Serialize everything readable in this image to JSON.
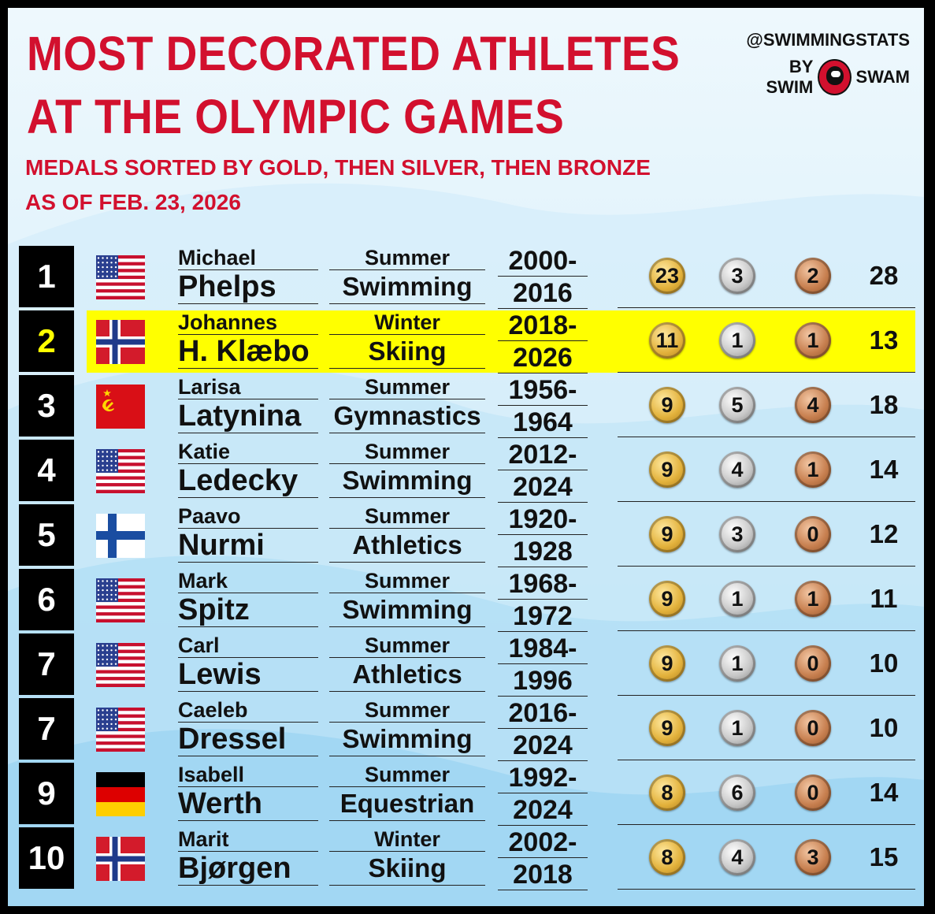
{
  "header": {
    "title_line1": "MOST DECORATED ATHLETES",
    "title_line2": "AT THE OLYMPIC GAMES",
    "subtitle_line1": "MEDALS SORTED BY GOLD, THEN SILVER, THEN BRONZE",
    "subtitle_line2": "AS OF FEB. 23, 2026"
  },
  "brand": {
    "handle": "@SWIMMINGSTATS",
    "by": "BY SWIM",
    "name": "SWAM",
    "logo_icon": "swimswam-logo-icon"
  },
  "colors": {
    "title": "#d2102e",
    "highlight": "#ffff00",
    "rank_background": "#000000"
  },
  "athletes": [
    {
      "rank": "1",
      "flag": "usa",
      "first": "Michael",
      "last": "Phelps",
      "season": "Summer",
      "sport": "Swimming",
      "years_start": "2000-",
      "years_end": "2016",
      "gold": "23",
      "silver": "3",
      "bronze": "2",
      "total": "28",
      "highlight": false
    },
    {
      "rank": "2",
      "flag": "norway",
      "first": "Johannes",
      "last": "H. Klæbo",
      "season": "Winter",
      "sport": "Skiing",
      "years_start": "2018-",
      "years_end": "2026",
      "gold": "11",
      "silver": "1",
      "bronze": "1",
      "total": "13",
      "highlight": true
    },
    {
      "rank": "3",
      "flag": "ussr",
      "first": "Larisa",
      "last": "Latynina",
      "season": "Summer",
      "sport": "Gymnastics",
      "years_start": "1956-",
      "years_end": "1964",
      "gold": "9",
      "silver": "5",
      "bronze": "4",
      "total": "18",
      "highlight": false
    },
    {
      "rank": "4",
      "flag": "usa",
      "first": "Katie",
      "last": "Ledecky",
      "season": "Summer",
      "sport": "Swimming",
      "years_start": "2012-",
      "years_end": "2024",
      "gold": "9",
      "silver": "4",
      "bronze": "1",
      "total": "14",
      "highlight": false
    },
    {
      "rank": "5",
      "flag": "finland",
      "first": "Paavo",
      "last": "Nurmi",
      "season": "Summer",
      "sport": "Athletics",
      "years_start": "1920-",
      "years_end": "1928",
      "gold": "9",
      "silver": "3",
      "bronze": "0",
      "total": "12",
      "highlight": false
    },
    {
      "rank": "6",
      "flag": "usa",
      "first": "Mark",
      "last": "Spitz",
      "season": "Summer",
      "sport": "Swimming",
      "years_start": "1968-",
      "years_end": "1972",
      "gold": "9",
      "silver": "1",
      "bronze": "1",
      "total": "11",
      "highlight": false
    },
    {
      "rank": "7",
      "flag": "usa",
      "first": "Carl",
      "last": "Lewis",
      "season": "Summer",
      "sport": "Athletics",
      "years_start": "1984-",
      "years_end": "1996",
      "gold": "9",
      "silver": "1",
      "bronze": "0",
      "total": "10",
      "highlight": false
    },
    {
      "rank": "7",
      "flag": "usa",
      "first": "Caeleb",
      "last": "Dressel",
      "season": "Summer",
      "sport": "Swimming",
      "years_start": "2016-",
      "years_end": "2024",
      "gold": "9",
      "silver": "1",
      "bronze": "0",
      "total": "10",
      "highlight": false
    },
    {
      "rank": "9",
      "flag": "germany",
      "first": "Isabell",
      "last": "Werth",
      "season": "Summer",
      "sport": "Equestrian",
      "years_start": "1992-",
      "years_end": "2024",
      "gold": "8",
      "silver": "6",
      "bronze": "0",
      "total": "14",
      "highlight": false
    },
    {
      "rank": "10",
      "flag": "norway",
      "first": "Marit",
      "last": "Bjørgen",
      "season": "Winter",
      "sport": "Skiing",
      "years_start": "2002-",
      "years_end": "2018",
      "gold": "8",
      "silver": "4",
      "bronze": "3",
      "total": "15",
      "highlight": false
    }
  ]
}
